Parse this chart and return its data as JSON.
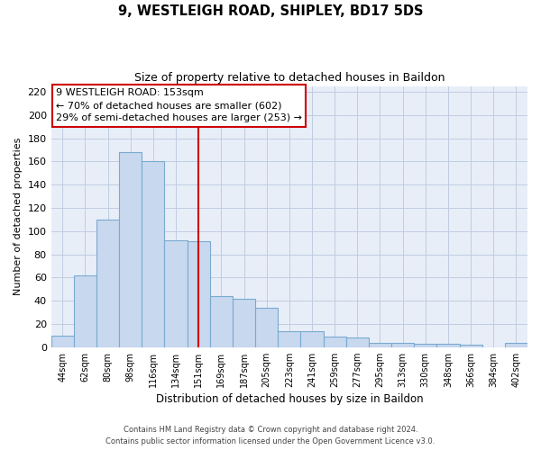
{
  "title": "9, WESTLEIGH ROAD, SHIPLEY, BD17 5DS",
  "subtitle": "Size of property relative to detached houses in Baildon",
  "xlabel": "Distribution of detached houses by size in Baildon",
  "ylabel": "Number of detached properties",
  "bar_labels": [
    "44sqm",
    "62sqm",
    "80sqm",
    "98sqm",
    "116sqm",
    "134sqm",
    "151sqm",
    "169sqm",
    "187sqm",
    "205sqm",
    "223sqm",
    "241sqm",
    "259sqm",
    "277sqm",
    "295sqm",
    "313sqm",
    "330sqm",
    "348sqm",
    "366sqm",
    "384sqm",
    "402sqm"
  ],
  "bar_values": [
    10,
    62,
    110,
    168,
    160,
    92,
    91,
    44,
    42,
    34,
    14,
    14,
    9,
    8,
    4,
    4,
    3,
    3,
    2,
    0,
    4
  ],
  "bar_color": "#c8d8ee",
  "bar_edge_color": "#7aaad0",
  "bg_color": "#e8eef8",
  "vline_x": 6,
  "vline_color": "#cc0000",
  "annotation_title": "9 WESTLEIGH ROAD: 153sqm",
  "annotation_line1": "← 70% of detached houses are smaller (602)",
  "annotation_line2": "29% of semi-detached houses are larger (253) →",
  "annotation_box_color": "#ffffff",
  "annotation_box_edge": "#cc0000",
  "ylim": [
    0,
    225
  ],
  "yticks": [
    0,
    20,
    40,
    60,
    80,
    100,
    120,
    140,
    160,
    180,
    200,
    220
  ],
  "footer1": "Contains HM Land Registry data © Crown copyright and database right 2024.",
  "footer2": "Contains public sector information licensed under the Open Government Licence v3.0."
}
